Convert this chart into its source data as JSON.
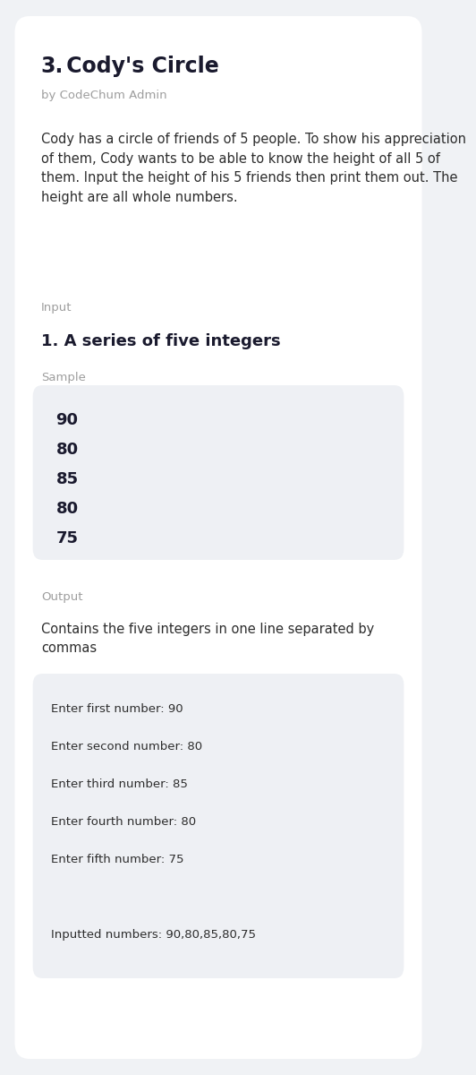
{
  "title_number": "3.",
  "title_text": " Cody's Circle",
  "author": "by CodeChum Admin",
  "description": "Cody has a circle of friends of 5 people. To show his appreciation of them, Cody wants to be able to know the height of all 5 of them. Input the height of his 5 friends then print them out. The height are all whole numbers.",
  "input_label": "Input",
  "input_item": "1. A series of five integers",
  "sample_label": "Sample",
  "sample_values": [
    "90",
    "80",
    "85",
    "80",
    "75"
  ],
  "output_label": "Output",
  "output_desc": "Contains the five integers in one line separated by\ncommas",
  "output_lines": [
    "Enter first number: 90",
    "Enter second number: 80",
    "Enter third number: 85",
    "Enter fourth number: 80",
    "Enter fifth number: 75",
    "",
    "Inputted numbers: 90,80,85,80,75"
  ],
  "bg_color": "#f0f2f5",
  "card_color": "#ffffff",
  "code_box_color": "#eef0f4",
  "title_color": "#1a1a2e",
  "body_color": "#2d2d2d",
  "label_color": "#9e9e9e",
  "input_item_color": "#1a1a2e",
  "sample_num_color": "#1a1a2e",
  "output_desc_color": "#2d2d2d",
  "mono_color": "#2d2d2d"
}
